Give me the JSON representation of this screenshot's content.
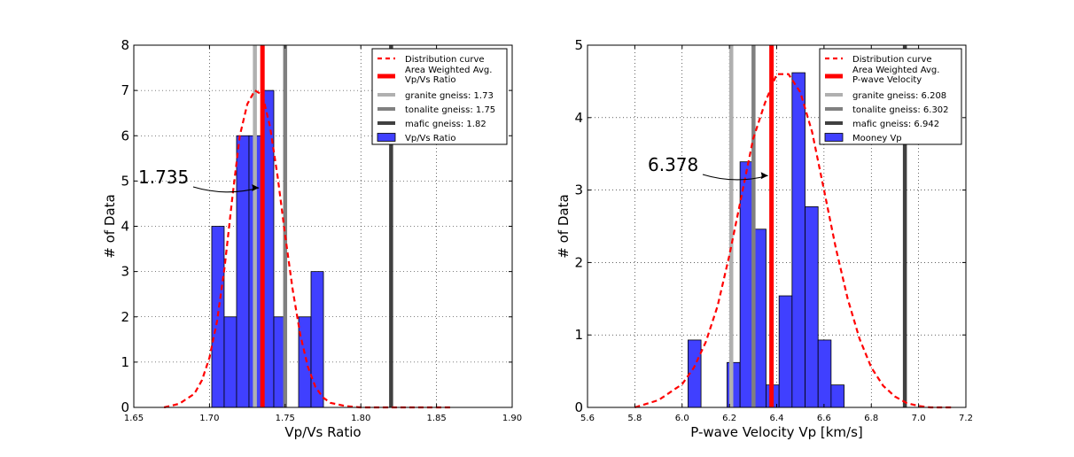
{
  "chart_data": [
    {
      "type": "bar",
      "xlabel": "Vp/Vs Ratio",
      "ylabel": "# of Data",
      "xlim": [
        1.65,
        1.9
      ],
      "ylim": [
        0,
        8
      ],
      "xticks": [
        "1.65",
        "1.70",
        "1.75",
        "1.80",
        "1.85",
        "1.90"
      ],
      "yticks": [
        "0",
        "1",
        "2",
        "3",
        "4",
        "5",
        "6",
        "7",
        "8"
      ],
      "grid": true,
      "legend_position": "top-right",
      "legend": [
        "Distribution curve",
        "Area Weighted Avg.\nVp/Vs Ratio",
        "granite gneiss: 1.73",
        "tonalite gneiss: 1.75",
        "mafic gneiss: 1.82",
        "Vp/Vs Ratio"
      ],
      "histogram": {
        "name": "Vp/Vs Ratio",
        "color": "#4040ff",
        "bins": [
          {
            "x0": 1.7015,
            "x1": 1.7097,
            "count": 4
          },
          {
            "x0": 1.7097,
            "x1": 1.7179,
            "count": 2
          },
          {
            "x0": 1.7179,
            "x1": 1.7261,
            "count": 6
          },
          {
            "x0": 1.7261,
            "x1": 1.7343,
            "count": 6
          },
          {
            "x0": 1.7343,
            "x1": 1.7425,
            "count": 7
          },
          {
            "x0": 1.7425,
            "x1": 1.7507,
            "count": 2
          },
          {
            "x0": 1.7507,
            "x1": 1.7589,
            "count": 0
          },
          {
            "x0": 1.7589,
            "x1": 1.7671,
            "count": 2
          },
          {
            "x0": 1.7671,
            "x1": 1.7753,
            "count": 3
          }
        ]
      },
      "reference_lines": [
        {
          "name": "granite gneiss: 1.73",
          "x": 1.73,
          "color": "#b0b0b0"
        },
        {
          "name": "tonalite gneiss: 1.75",
          "x": 1.75,
          "color": "#808080"
        },
        {
          "name": "mafic gneiss: 1.82",
          "x": 1.82,
          "color": "#404040"
        },
        {
          "name": "Area Weighted Avg. Vp/Vs Ratio",
          "x": 1.735,
          "color": "#ff0000"
        }
      ],
      "curve": {
        "name": "Distribution curve",
        "color": "#ff0000",
        "x": [
          1.67,
          1.68,
          1.69,
          1.695,
          1.7,
          1.705,
          1.71,
          1.715,
          1.72,
          1.725,
          1.73,
          1.735,
          1.74,
          1.745,
          1.75,
          1.755,
          1.76,
          1.765,
          1.77,
          1.775,
          1.78,
          1.79,
          1.8,
          1.82,
          1.86
        ],
        "y": [
          0.0,
          0.08,
          0.3,
          0.6,
          1.1,
          1.9,
          3.1,
          4.6,
          6.0,
          6.7,
          7.0,
          6.9,
          6.2,
          5.1,
          3.8,
          2.6,
          1.6,
          0.9,
          0.45,
          0.22,
          0.1,
          0.03,
          0.0,
          0.0,
          0.0
        ]
      },
      "annotation": {
        "text": "1.735",
        "x": 1.735,
        "y": 4.85
      }
    },
    {
      "type": "bar",
      "xlabel": "P-wave Velocity Vp [km/s]",
      "ylabel": "# of Data",
      "xlim": [
        5.6,
        7.2
      ],
      "ylim": [
        0,
        5
      ],
      "xticks": [
        "5.6",
        "5.8",
        "6.0",
        "6.2",
        "6.4",
        "6.6",
        "6.8",
        "7.0",
        "7.2"
      ],
      "yticks": [
        "0",
        "1",
        "2",
        "3",
        "4",
        "5"
      ],
      "grid": true,
      "legend_position": "top-right",
      "legend": [
        "Distribution curve",
        "Area Weighted Avg.\nP-wave Velocity",
        "granite gneiss: 6.208",
        "tonalite gneiss: 6.302",
        "mafic gneiss: 6.942",
        "Mooney Vp"
      ],
      "histogram": {
        "name": "Mooney Vp",
        "color": "#4040ff",
        "bins": [
          {
            "x0": 6.025,
            "x1": 6.08,
            "count": 0.93
          },
          {
            "x0": 6.08,
            "x1": 6.135,
            "count": 0
          },
          {
            "x0": 6.135,
            "x1": 6.19,
            "count": 0
          },
          {
            "x0": 6.19,
            "x1": 6.245,
            "count": 0.62
          },
          {
            "x0": 6.245,
            "x1": 6.3,
            "count": 3.39
          },
          {
            "x0": 6.3,
            "x1": 6.355,
            "count": 2.46
          },
          {
            "x0": 6.355,
            "x1": 6.41,
            "count": 0.31
          },
          {
            "x0": 6.41,
            "x1": 6.465,
            "count": 1.54
          },
          {
            "x0": 6.465,
            "x1": 6.52,
            "count": 4.62
          },
          {
            "x0": 6.52,
            "x1": 6.575,
            "count": 2.77
          },
          {
            "x0": 6.575,
            "x1": 6.63,
            "count": 0.93
          },
          {
            "x0": 6.63,
            "x1": 6.685,
            "count": 0.31
          }
        ]
      },
      "reference_lines": [
        {
          "name": "granite gneiss: 6.208",
          "x": 6.208,
          "color": "#b0b0b0"
        },
        {
          "name": "tonalite gneiss: 6.302",
          "x": 6.302,
          "color": "#808080"
        },
        {
          "name": "mafic gneiss: 6.942",
          "x": 6.942,
          "color": "#404040"
        },
        {
          "name": "Area Weighted Avg. P-wave Velocity",
          "x": 6.378,
          "color": "#ff0000"
        }
      ],
      "curve": {
        "name": "Distribution curve",
        "color": "#ff0000",
        "x": [
          5.8,
          5.9,
          6.0,
          6.05,
          6.1,
          6.15,
          6.2,
          6.25,
          6.3,
          6.35,
          6.4,
          6.45,
          6.5,
          6.55,
          6.6,
          6.65,
          6.7,
          6.75,
          6.8,
          6.85,
          6.9,
          6.95,
          7.0,
          7.05,
          7.1,
          7.15
        ],
        "y": [
          0.0,
          0.1,
          0.32,
          0.55,
          0.9,
          1.4,
          2.1,
          2.9,
          3.7,
          4.2,
          4.6,
          4.6,
          4.35,
          3.8,
          3.0,
          2.2,
          1.5,
          0.95,
          0.55,
          0.3,
          0.15,
          0.06,
          0.02,
          0.0,
          0.0,
          0.0
        ]
      },
      "annotation": {
        "text": "6.378",
        "x": 6.378,
        "y": 3.2
      }
    }
  ]
}
